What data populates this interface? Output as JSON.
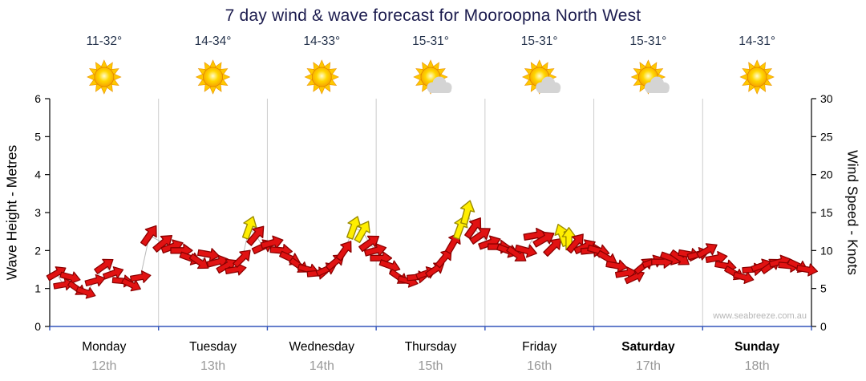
{
  "title": "7 day wind & wave forecast for Mooroopna North West",
  "watermark": "www.seabreeze.com.au",
  "axes": {
    "left_label": "Wave Height - Metres",
    "right_label": "Wind Speed - Knots"
  },
  "days": [
    {
      "name": "Monday",
      "date": "12th",
      "temp": "11-32°",
      "icon": "sun",
      "bold": false
    },
    {
      "name": "Tuesday",
      "date": "13th",
      "temp": "14-34°",
      "icon": "sun",
      "bold": false
    },
    {
      "name": "Wednesday",
      "date": "14th",
      "temp": "14-33°",
      "icon": "sun",
      "bold": false
    },
    {
      "name": "Thursday",
      "date": "15th",
      "temp": "15-31°",
      "icon": "sun-cloud",
      "bold": false
    },
    {
      "name": "Friday",
      "date": "16th",
      "temp": "15-31°",
      "icon": "sun-cloud",
      "bold": false
    },
    {
      "name": "Saturday",
      "date": "17th",
      "temp": "15-31°",
      "icon": "sun-cloud",
      "bold": true
    },
    {
      "name": "Sunday",
      "date": "18th",
      "temp": "14-31°",
      "icon": "sun",
      "bold": true
    }
  ],
  "colors": {
    "title_text": "#1c1c4e",
    "temp_text": "#24324b",
    "axis": "#000000",
    "grid": "#cccccc",
    "baseline": "#3355bb",
    "date_text": "#999999",
    "watermark_text": "#b5b5b5",
    "arrow_red": "#e11212",
    "arrow_red_outline": "#8b0000",
    "arrow_yellow": "#ffee00",
    "arrow_yellow_outline": "#9a8a00",
    "trend_line": "#b8b8b8",
    "sun_core": "#ffd700",
    "sun_ray": "#ffc800",
    "cloud": "#d4d4d4"
  },
  "chart_data": {
    "type": "scatter",
    "title": "7 day wind & wave forecast for Mooroopna North West",
    "x_axis": {
      "unit": "hours",
      "range": [
        0,
        168
      ],
      "day_categories": [
        "Monday 12th",
        "Tuesday 13th",
        "Wednesday 14th",
        "Thursday 15th",
        "Friday 16th",
        "Saturday 17th",
        "Sunday 18th"
      ]
    },
    "y_left": {
      "label": "Wave Height - Metres",
      "range": [
        0,
        6
      ],
      "ticks": [
        0,
        1,
        2,
        3,
        4,
        5,
        6
      ]
    },
    "y_right": {
      "label": "Wind Speed - Knots",
      "range": [
        0,
        30
      ],
      "ticks": [
        0,
        5,
        10,
        15,
        20,
        25,
        30
      ]
    },
    "legend": "off",
    "grid": "vertical-day-separators",
    "point_format": [
      "hour",
      "wind_speed_knots",
      "direction_deg",
      "is_strong_yellow"
    ],
    "series": [
      {
        "name": "Wind speed & direction (knots)",
        "points": [
          [
            1.5,
            7,
            -30,
            0
          ],
          [
            3,
            5.5,
            -10,
            0
          ],
          [
            4.5,
            6.5,
            15,
            0
          ],
          [
            6,
            5,
            35,
            0
          ],
          [
            8,
            4.5,
            20,
            0
          ],
          [
            10,
            6,
            -15,
            0
          ],
          [
            12,
            8,
            -35,
            0
          ],
          [
            14,
            7,
            -20,
            0
          ],
          [
            16,
            6,
            5,
            0
          ],
          [
            18,
            5.5,
            25,
            0
          ],
          [
            20,
            6.5,
            -10,
            0
          ],
          [
            22,
            12,
            -55,
            0
          ],
          [
            25,
            11,
            -40,
            0
          ],
          [
            27,
            10.5,
            -20,
            0
          ],
          [
            29,
            10,
            0,
            0
          ],
          [
            31,
            9,
            20,
            0
          ],
          [
            33,
            8.5,
            35,
            0
          ],
          [
            35,
            9.5,
            10,
            0
          ],
          [
            37,
            8.5,
            -15,
            0
          ],
          [
            39,
            8,
            -30,
            0
          ],
          [
            41,
            7.5,
            -10,
            0
          ],
          [
            42.5,
            9,
            -45,
            0
          ],
          [
            44,
            13,
            -70,
            1
          ],
          [
            45.5,
            12,
            -50,
            0
          ],
          [
            47,
            10.5,
            -25,
            0
          ],
          [
            49,
            11,
            -15,
            0
          ],
          [
            51,
            10,
            5,
            0
          ],
          [
            53,
            9,
            25,
            0
          ],
          [
            55,
            8,
            35,
            0
          ],
          [
            57,
            7.5,
            15,
            0
          ],
          [
            59,
            7,
            -5,
            0
          ],
          [
            61,
            7.5,
            -25,
            0
          ],
          [
            63,
            8.5,
            -40,
            0
          ],
          [
            65,
            10,
            -55,
            0
          ],
          [
            67,
            13,
            -70,
            1
          ],
          [
            69,
            12.5,
            -60,
            1
          ],
          [
            70.5,
            11,
            -35,
            0
          ],
          [
            71.8,
            10,
            -15,
            0
          ],
          [
            73,
            9,
            0,
            0
          ],
          [
            75,
            8,
            20,
            0
          ],
          [
            77,
            6.5,
            35,
            0
          ],
          [
            79,
            6,
            15,
            0
          ],
          [
            81,
            6.5,
            -5,
            0
          ],
          [
            83,
            7,
            -20,
            0
          ],
          [
            85,
            7.5,
            -35,
            0
          ],
          [
            87,
            9,
            -50,
            0
          ],
          [
            89,
            11,
            -60,
            0
          ],
          [
            90.5,
            13,
            -70,
            1
          ],
          [
            92,
            15,
            -75,
            1
          ],
          [
            93.5,
            13,
            -55,
            0
          ],
          [
            95,
            12,
            -35,
            0
          ],
          [
            97,
            11,
            -20,
            0
          ],
          [
            99,
            10.5,
            0,
            0
          ],
          [
            101,
            10,
            20,
            0
          ],
          [
            103,
            9.5,
            35,
            0
          ],
          [
            105,
            10,
            15,
            0
          ],
          [
            107,
            12,
            -10,
            0
          ],
          [
            109,
            11.5,
            -30,
            0
          ],
          [
            111,
            10.5,
            -45,
            0
          ],
          [
            113,
            12,
            -110,
            1
          ],
          [
            114.5,
            11.5,
            -90,
            1
          ],
          [
            116,
            11,
            -50,
            0
          ],
          [
            118,
            10.5,
            -25,
            0
          ],
          [
            119.5,
            10,
            -5,
            0
          ],
          [
            121,
            10,
            15,
            0
          ],
          [
            123,
            9,
            30,
            0
          ],
          [
            125,
            8,
            10,
            0
          ],
          [
            127,
            7,
            -10,
            0
          ],
          [
            129,
            6.5,
            -25,
            0
          ],
          [
            131,
            8,
            -40,
            0
          ],
          [
            133,
            8.5,
            -20,
            0
          ],
          [
            135,
            8.5,
            0,
            0
          ],
          [
            137,
            9,
            20,
            0
          ],
          [
            139,
            9,
            35,
            0
          ],
          [
            141,
            9.5,
            10,
            0
          ],
          [
            143,
            9.5,
            -15,
            0
          ],
          [
            145,
            10,
            -30,
            0
          ],
          [
            147,
            9,
            -10,
            0
          ],
          [
            149,
            8,
            10,
            0
          ],
          [
            151,
            7,
            30,
            0
          ],
          [
            153,
            6.5,
            15,
            0
          ],
          [
            155,
            7.5,
            -5,
            0
          ],
          [
            157,
            8,
            -20,
            0
          ],
          [
            159,
            8,
            -35,
            0
          ],
          [
            161,
            8.5,
            -15,
            0
          ],
          [
            163,
            8,
            5,
            0
          ],
          [
            165,
            8,
            25,
            0
          ],
          [
            167,
            7.5,
            10,
            0
          ]
        ]
      }
    ]
  }
}
